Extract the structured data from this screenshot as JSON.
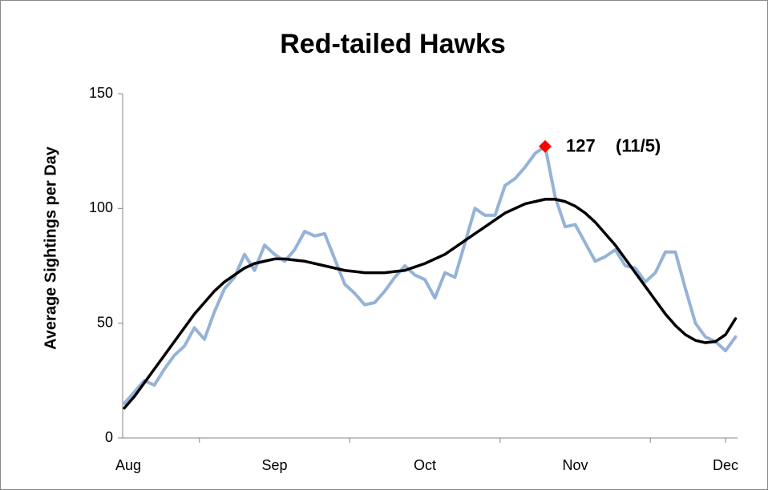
{
  "chart_data": {
    "type": "line",
    "title": "Red-tailed Hawks",
    "y_label": "Average Sightings per Day",
    "categories": [
      "Aug",
      null,
      null,
      null,
      null,
      null,
      null,
      null,
      null,
      null,
      null,
      null,
      null,
      null,
      null,
      "Sep",
      null,
      null,
      null,
      null,
      null,
      null,
      null,
      null,
      null,
      null,
      null,
      null,
      null,
      null,
      "Oct",
      null,
      null,
      null,
      null,
      null,
      null,
      null,
      null,
      null,
      null,
      null,
      null,
      null,
      null,
      "Nov",
      null,
      null,
      null,
      null,
      null,
      null,
      null,
      null,
      null,
      null,
      null,
      null,
      null,
      null,
      "Dec",
      null
    ],
    "series": [
      {
        "color": "#95b3d7",
        "values": [
          15,
          20,
          25,
          23,
          30,
          36,
          40,
          48,
          43,
          55,
          65,
          70,
          80,
          73,
          84,
          80,
          77,
          82,
          90,
          88,
          89,
          78,
          67,
          63,
          58,
          59,
          64,
          70,
          75,
          71,
          69,
          61,
          72,
          70,
          85,
          100,
          97,
          97,
          110,
          113,
          118,
          124,
          127,
          105,
          92,
          93,
          85,
          77,
          79,
          82,
          75,
          74,
          68,
          72,
          81,
          81,
          65,
          50,
          44,
          42,
          38,
          44
        ]
      },
      {
        "color": "#000000",
        "values": [
          13,
          18,
          24,
          30,
          36,
          42,
          48,
          54,
          59,
          64,
          68,
          71,
          74,
          76,
          77,
          78,
          78,
          77.5,
          77,
          76,
          75,
          74,
          73,
          72.5,
          72,
          72,
          72,
          72.5,
          73,
          74.5,
          76,
          78,
          80,
          83,
          86,
          89,
          92,
          95,
          98,
          100,
          102,
          103,
          104,
          104,
          103,
          101,
          98,
          94,
          89,
          84,
          78,
          72,
          66,
          60,
          54,
          49,
          45,
          42.5,
          41.5,
          42,
          45,
          52
        ]
      },
      {
        "color": "#ff0000",
        "marker": "diamond",
        "values": [
          null,
          null,
          null,
          null,
          null,
          null,
          null,
          null,
          null,
          null,
          null,
          null,
          null,
          null,
          null,
          null,
          null,
          null,
          null,
          null,
          null,
          null,
          null,
          null,
          null,
          null,
          null,
          null,
          null,
          null,
          null,
          null,
          null,
          null,
          null,
          null,
          null,
          null,
          null,
          null,
          null,
          null,
          127,
          null,
          null,
          null,
          null,
          null,
          null,
          null,
          null,
          null,
          null,
          null,
          null,
          null,
          null,
          null,
          null,
          null,
          null,
          null
        ]
      }
    ],
    "annotation": "(11/5)",
    "ylim": [
      0,
      150
    ],
    "yticks": [
      0,
      50,
      100,
      150
    ]
  }
}
